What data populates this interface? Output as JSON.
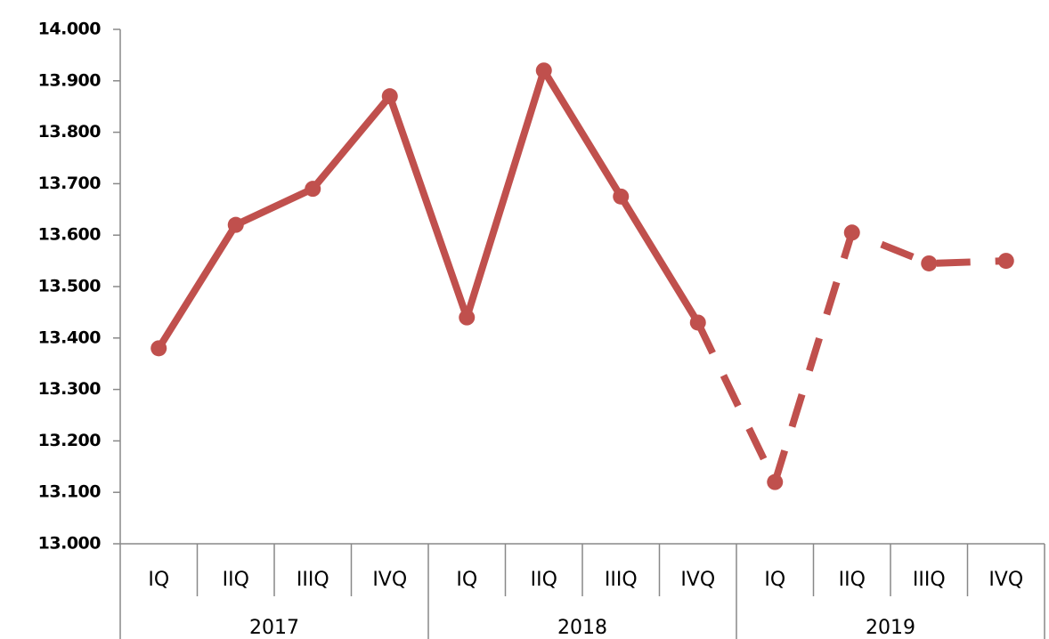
{
  "chart_data": {
    "type": "line",
    "categories": [
      "IQ",
      "IIQ",
      "IIIQ",
      "IVQ",
      "IQ",
      "IIQ",
      "IIIQ",
      "IVQ",
      "IQ",
      "IIQ",
      "IIIQ",
      "IVQ"
    ],
    "category_groups": [
      "2017",
      "2018",
      "2019"
    ],
    "values": [
      13.38,
      13.62,
      13.69,
      13.87,
      13.44,
      13.92,
      13.675,
      13.43,
      13.12,
      13.605,
      13.545,
      13.55
    ],
    "dashed_from": 7,
    "color": "#c0504d",
    "ylim": [
      13,
      14
    ],
    "yticks": [
      {
        "value": 13.0,
        "label": "13.000"
      },
      {
        "value": 13.1,
        "label": "13.100"
      },
      {
        "value": 13.2,
        "label": "13.200"
      },
      {
        "value": 13.3,
        "label": "13.300"
      },
      {
        "value": 13.4,
        "label": "13.400"
      },
      {
        "value": 13.5,
        "label": "13.500"
      },
      {
        "value": 13.6,
        "label": "13.600"
      },
      {
        "value": 13.7,
        "label": "13.700"
      },
      {
        "value": 13.8,
        "label": "13.800"
      },
      {
        "value": 13.9,
        "label": "13.900"
      },
      {
        "value": 14.0,
        "label": "14.000"
      }
    ]
  }
}
